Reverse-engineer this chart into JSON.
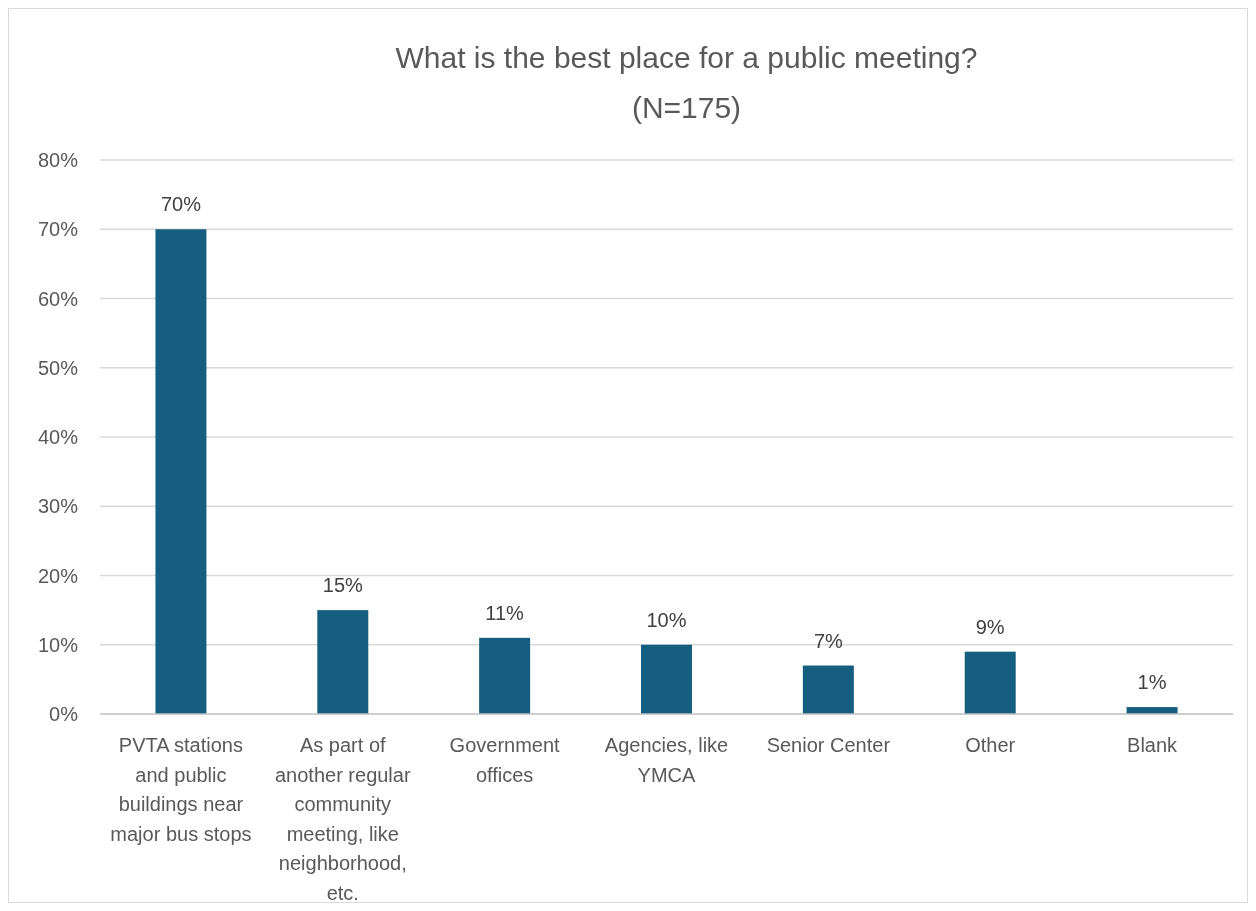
{
  "chart_data": {
    "type": "bar",
    "title": "What is the best place for a public meeting?",
    "subtitle": "(N=175)",
    "categories": [
      "PVTA stations and public buildings near major bus stops",
      "As part of another regular community meeting, like neighborhood, etc.",
      "Government offices",
      "Agencies, like YMCA",
      "Senior Center",
      "Other",
      "Blank"
    ],
    "values": [
      70,
      15,
      11,
      10,
      7,
      9,
      1
    ],
    "value_labels": [
      "70%",
      "15%",
      "11%",
      "10%",
      "7%",
      "9%",
      "1%"
    ],
    "color": "#165e80",
    "ylim": [
      0,
      80
    ],
    "yticks": [
      {
        "value": 0,
        "label": "0%"
      },
      {
        "value": 10,
        "label": "10%"
      },
      {
        "value": 20,
        "label": "20%"
      },
      {
        "value": 30,
        "label": "30%"
      },
      {
        "value": 40,
        "label": "40%"
      },
      {
        "value": 50,
        "label": "50%"
      },
      {
        "value": 60,
        "label": "60%"
      },
      {
        "value": 70,
        "label": "70%"
      },
      {
        "value": 80,
        "label": "80%"
      }
    ],
    "grid": "y"
  }
}
